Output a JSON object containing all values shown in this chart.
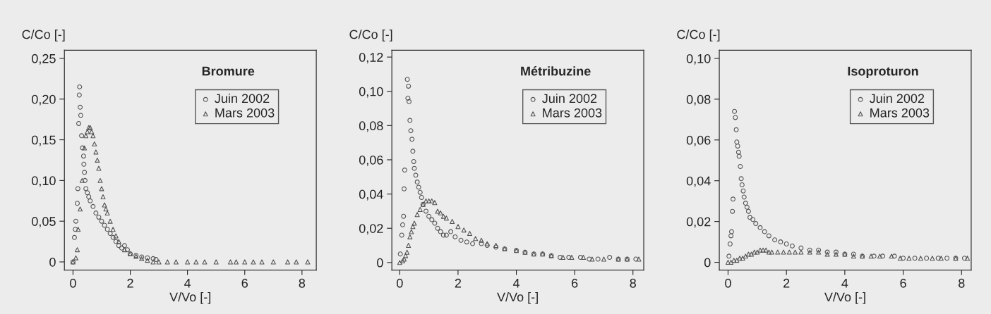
{
  "chart_data": [
    {
      "type": "scatter",
      "title": "Bromure",
      "xlabel": "V/Vo [-]",
      "ylabel": "C/Co [-]",
      "xlim": [
        -0.3,
        8.5
      ],
      "ylim": [
        -0.01,
        0.26
      ],
      "xticks": [
        0,
        2,
        4,
        6,
        8
      ],
      "yticks": [
        0,
        {
          "value": 0.05,
          "label": "0,05"
        },
        {
          "value": 0.1,
          "label": "0,10"
        },
        {
          "value": 0.15,
          "label": "0,15"
        },
        {
          "value": 0.2,
          "label": "0,20"
        },
        {
          "value": 0.25,
          "label": "0,25"
        }
      ],
      "grid": false,
      "legend": "top right",
      "series": [
        {
          "name": "Juin 2002",
          "color": "#555555",
          "marker": "circle",
          "x": [
            0,
            0.05,
            0.08,
            0.1,
            0.15,
            0.17,
            0.2,
            0.22,
            0.23,
            0.25,
            0.27,
            0.3,
            0.33,
            0.37,
            0.38,
            0.4,
            0.42,
            0.45,
            0.5,
            0.55,
            0.6,
            0.7,
            0.8,
            0.9,
            1.0,
            1.1,
            1.2,
            1.3,
            1.4,
            1.5,
            1.6,
            1.7,
            1.8,
            1.9,
            2.0,
            2.2,
            2.4,
            2.6,
            2.8,
            2.9
          ],
          "values": [
            0,
            0.03,
            0.04,
            0.05,
            0.072,
            0.09,
            0.17,
            0.205,
            0.215,
            0.19,
            0.18,
            0.155,
            0.14,
            0.13,
            0.12,
            0.11,
            0.1,
            0.09,
            0.085,
            0.08,
            0.075,
            0.068,
            0.06,
            0.055,
            0.05,
            0.045,
            0.04,
            0.035,
            0.03,
            0.025,
            0.02,
            0.017,
            0.02,
            0.015,
            0.01,
            0.008,
            0.006,
            0.005,
            0.004,
            0.003
          ]
        },
        {
          "name": "Mars 2003",
          "color": "#555555",
          "marker": "triangle",
          "x": [
            0,
            0.1,
            0.15,
            0.18,
            0.25,
            0.32,
            0.4,
            0.45,
            0.5,
            0.55,
            0.6,
            0.65,
            0.7,
            0.75,
            0.8,
            0.85,
            0.9,
            0.95,
            1.0,
            1.05,
            1.1,
            1.15,
            1.2,
            1.3,
            1.4,
            1.5,
            1.6,
            1.8,
            2.0,
            2.2,
            2.4,
            2.6,
            2.8,
            3.0,
            3.3,
            3.6,
            4.0,
            4.3,
            4.6,
            5.0,
            5.5,
            5.7,
            6.0,
            6.3,
            6.6,
            7.0,
            7.5,
            7.8,
            8.2
          ],
          "values": [
            0,
            0.005,
            0.015,
            0.04,
            0.065,
            0.1,
            0.14,
            0.155,
            0.16,
            0.165,
            0.165,
            0.16,
            0.155,
            0.145,
            0.135,
            0.125,
            0.115,
            0.1,
            0.09,
            0.08,
            0.07,
            0.065,
            0.06,
            0.05,
            0.04,
            0.032,
            0.025,
            0.015,
            0.01,
            0.007,
            0.004,
            0.002,
            0,
            0,
            0,
            0,
            0,
            0,
            0,
            0,
            0,
            0,
            0,
            0,
            0,
            0,
            0,
            0,
            0
          ]
        }
      ]
    },
    {
      "type": "scatter",
      "title": "Métribuzine",
      "xlabel": "V/Vo [-]",
      "ylabel": "C/Co [-]",
      "xlim": [
        -0.27,
        8.37
      ],
      "ylim": [
        -0.0044,
        0.124
      ],
      "xticks": [
        0,
        2,
        4,
        6,
        8
      ],
      "yticks": [
        0,
        {
          "value": 0.02,
          "label": "0,02"
        },
        {
          "value": 0.04,
          "label": "0,04"
        },
        {
          "value": 0.06,
          "label": "0,06"
        },
        {
          "value": 0.08,
          "label": "0,08"
        },
        {
          "value": 0.1,
          "label": "0,10"
        },
        {
          "value": 0.12,
          "label": "0,12"
        }
      ],
      "grid": false,
      "legend": "top right",
      "series": [
        {
          "name": "Juin 2002",
          "color": "#555555",
          "marker": "circle",
          "x": [
            0.02,
            0.07,
            0.1,
            0.13,
            0.15,
            0.17,
            0.26,
            0.3,
            0.28,
            0.32,
            0.35,
            0.38,
            0.42,
            0.45,
            0.48,
            0.5,
            0.55,
            0.6,
            0.65,
            0.7,
            0.75,
            0.8,
            0.9,
            1.0,
            1.1,
            1.2,
            1.3,
            1.4,
            1.5,
            1.6,
            1.75,
            1.9,
            2.1,
            2.3,
            2.5,
            2.8,
            3.0,
            3.3,
            3.6,
            4.0,
            4.3,
            4.6,
            4.9,
            5.2,
            5.5,
            5.8,
            6.2,
            6.5,
            6.8,
            7.2,
            7.5,
            7.8,
            8.1
          ],
          "values": [
            0.005,
            0.016,
            0.022,
            0.027,
            0.043,
            0.054,
            0.107,
            0.103,
            0.096,
            0.094,
            0.083,
            0.077,
            0.072,
            0.065,
            0.059,
            0.055,
            0.051,
            0.047,
            0.044,
            0.041,
            0.038,
            0.034,
            0.03,
            0.027,
            0.025,
            0.023,
            0.02,
            0.018,
            0.016,
            0.016,
            0.018,
            0.015,
            0.013,
            0.012,
            0.011,
            0.011,
            0.01,
            0.009,
            0.008,
            0.007,
            0.006,
            0.005,
            0.005,
            0.004,
            0.003,
            0.003,
            0.003,
            0.002,
            0.002,
            0.003,
            0.002,
            0.002,
            0.002
          ]
        },
        {
          "name": "Mars 2003",
          "color": "#555555",
          "marker": "triangle",
          "x": [
            0,
            0.1,
            0.15,
            0.2,
            0.25,
            0.3,
            0.35,
            0.4,
            0.45,
            0.5,
            0.6,
            0.7,
            0.8,
            0.9,
            1.0,
            1.1,
            1.2,
            1.3,
            1.4,
            1.5,
            1.6,
            1.8,
            2.0,
            2.2,
            2.4,
            2.6,
            2.8,
            3.0,
            3.3,
            3.6,
            4.0,
            4.3,
            4.6,
            4.9,
            5.2,
            5.6,
            5.9,
            6.3,
            6.6,
            7.0,
            7.5,
            7.8,
            8.2
          ],
          "values": [
            0,
            0.001,
            0.002,
            0.004,
            0.006,
            0.01,
            0.015,
            0.018,
            0.021,
            0.023,
            0.028,
            0.031,
            0.034,
            0.036,
            0.036,
            0.036,
            0.035,
            0.03,
            0.029,
            0.027,
            0.026,
            0.024,
            0.021,
            0.019,
            0.017,
            0.014,
            0.013,
            0.011,
            0.01,
            0.008,
            0.007,
            0.006,
            0.005,
            0.005,
            0.004,
            0.003,
            0.003,
            0.003,
            0.002,
            0.002,
            0.002,
            0.002,
            0.002
          ]
        }
      ]
    },
    {
      "type": "scatter",
      "title": "Isoproturon",
      "xlabel": "V/Vo [-]",
      "ylabel": "C/Co [-]",
      "xlim": [
        -0.3,
        8.33
      ],
      "ylim": [
        -0.0038,
        0.104
      ],
      "xticks": [
        0,
        2,
        4,
        6,
        8
      ],
      "yticks": [
        0,
        {
          "value": 0.02,
          "label": "0,02"
        },
        {
          "value": 0.04,
          "label": "0,04"
        },
        {
          "value": 0.06,
          "label": "0,06"
        },
        {
          "value": 0.08,
          "label": "0,08"
        },
        {
          "value": 0.1,
          "label": "0,10"
        }
      ],
      "grid": false,
      "legend": "top right",
      "series": [
        {
          "name": "Juin 2002",
          "color": "#555555",
          "marker": "circle",
          "x": [
            0.03,
            0.07,
            0.1,
            0.12,
            0.15,
            0.17,
            0.22,
            0.25,
            0.28,
            0.3,
            0.33,
            0.36,
            0.38,
            0.42,
            0.45,
            0.48,
            0.52,
            0.55,
            0.6,
            0.65,
            0.7,
            0.75,
            0.85,
            0.95,
            1.1,
            1.25,
            1.4,
            1.6,
            1.8,
            2.0,
            2.2,
            2.5,
            2.8,
            3.1,
            3.4,
            3.7,
            4.0,
            4.3,
            4.6,
            5.0,
            5.3,
            5.7,
            6.0,
            6.4,
            6.8,
            7.2,
            7.5,
            7.8,
            8.1
          ],
          "values": [
            0.003,
            0.009,
            0.013,
            0.015,
            0.025,
            0.031,
            0.074,
            0.071,
            0.065,
            0.059,
            0.057,
            0.054,
            0.052,
            0.047,
            0.041,
            0.038,
            0.035,
            0.032,
            0.029,
            0.027,
            0.025,
            0.022,
            0.021,
            0.019,
            0.017,
            0.015,
            0.013,
            0.011,
            0.01,
            0.009,
            0.008,
            0.007,
            0.006,
            0.006,
            0.005,
            0.005,
            0.004,
            0.004,
            0.003,
            0.003,
            0.003,
            0.003,
            0.002,
            0.002,
            0.002,
            0.002,
            0.002,
            0.002,
            0.002
          ]
        },
        {
          "name": "Mars 2003",
          "color": "#555555",
          "marker": "triangle",
          "x": [
            0,
            0.1,
            0.2,
            0.3,
            0.4,
            0.5,
            0.6,
            0.7,
            0.8,
            0.9,
            1.0,
            1.1,
            1.2,
            1.3,
            1.4,
            1.5,
            1.7,
            1.9,
            2.1,
            2.3,
            2.5,
            2.8,
            3.1,
            3.4,
            3.7,
            4.0,
            4.3,
            4.6,
            4.9,
            5.2,
            5.6,
            5.9,
            6.2,
            6.6,
            7.0,
            7.3,
            7.8,
            8.2
          ],
          "values": [
            0,
            0,
            0.001,
            0.001,
            0.002,
            0.002,
            0.003,
            0.004,
            0.004,
            0.005,
            0.005,
            0.006,
            0.006,
            0.006,
            0.005,
            0.005,
            0.005,
            0.005,
            0.005,
            0.005,
            0.005,
            0.005,
            0.005,
            0.004,
            0.004,
            0.004,
            0.003,
            0.003,
            0.003,
            0.003,
            0.003,
            0.002,
            0.002,
            0.002,
            0.002,
            0.002,
            0.002,
            0.002
          ]
        }
      ]
    }
  ]
}
